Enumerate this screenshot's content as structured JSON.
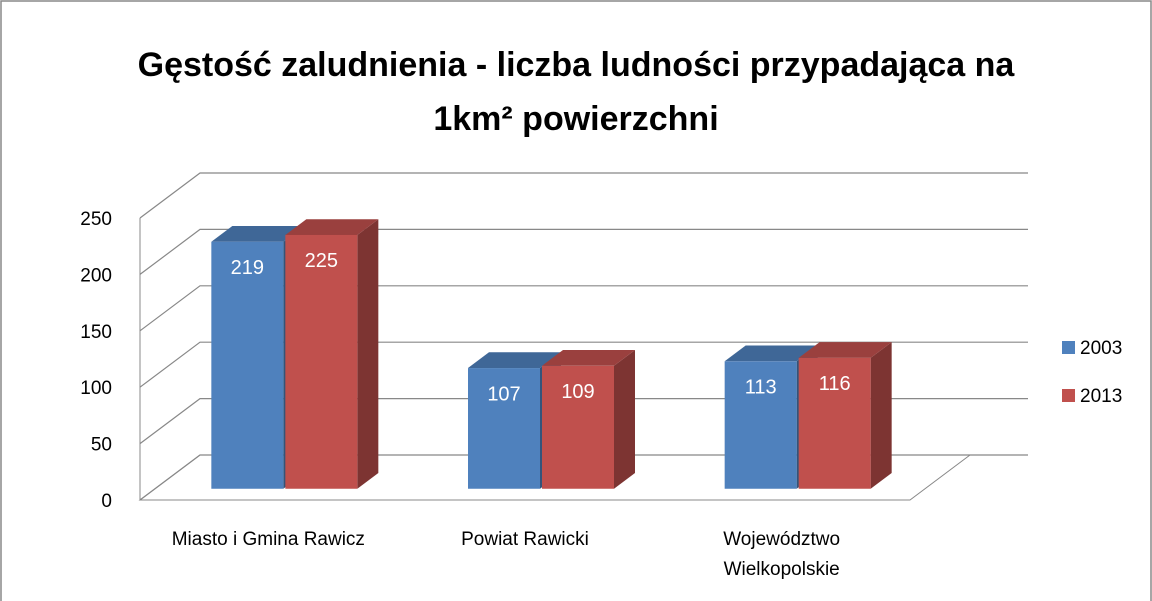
{
  "chart_data": {
    "type": "bar3d",
    "title": "Gęstość zaludnienia - liczba ludności przypadająca na 1km² powierzchni",
    "categories": [
      "Miasto i Gmina Rawicz",
      "Powiat Rawicki",
      "Województwo Wielkopolskie"
    ],
    "series": [
      {
        "name": "2003",
        "color": "#4f81bd",
        "values": [
          219,
          107,
          113
        ]
      },
      {
        "name": "2013",
        "color": "#c0504d",
        "values": [
          225,
          109,
          116
        ]
      }
    ],
    "ylim": [
      0,
      250
    ],
    "yticks": [
      0,
      50,
      100,
      150,
      200,
      250
    ],
    "grid": true,
    "legend": "right"
  }
}
